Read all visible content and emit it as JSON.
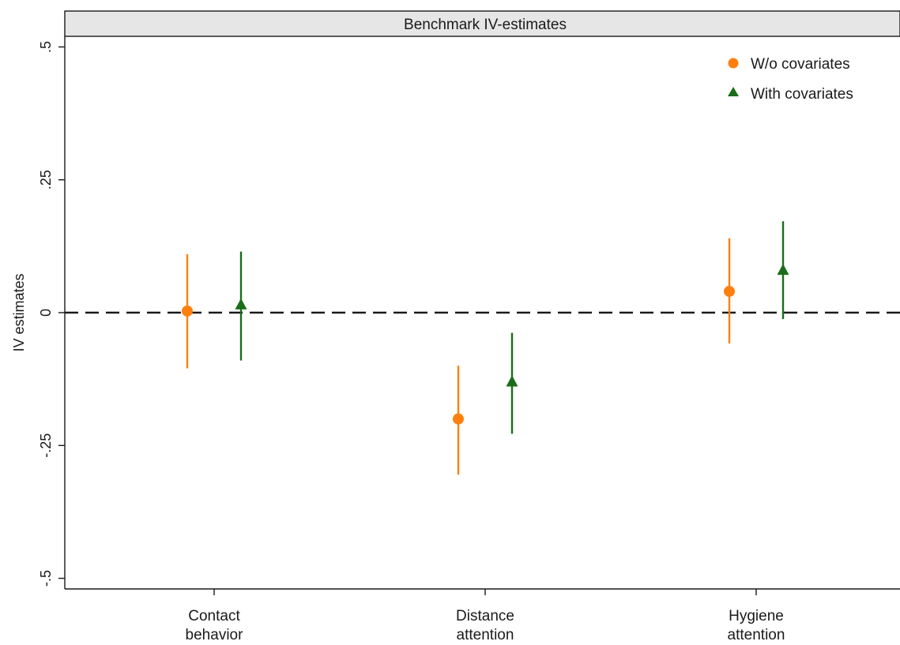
{
  "chart_data": {
    "type": "scatter",
    "panel_title": "Benchmark IV-estimates",
    "ylabel": "IV estimates",
    "xlabel": "",
    "ylim": [
      -0.52,
      0.52
    ],
    "yticks": [
      {
        "value": 0.5,
        "label": ".5"
      },
      {
        "value": 0.25,
        "label": ".25"
      },
      {
        "value": 0,
        "label": "0"
      },
      {
        "value": -0.25,
        "label": "-.25"
      },
      {
        "value": -0.5,
        "label": "-.5"
      }
    ],
    "categories": [
      {
        "lines": [
          "Contact",
          "behavior"
        ]
      },
      {
        "lines": [
          "Distance",
          "attention"
        ]
      },
      {
        "lines": [
          "Hygiene",
          "attention"
        ]
      }
    ],
    "reference_line": {
      "y": 0,
      "style": "dashed"
    },
    "grid": false,
    "legend": {
      "placement": "top-right"
    },
    "series": [
      {
        "name": "W/o covariates",
        "marker": "circle",
        "color": "#ff7f0e",
        "points": [
          {
            "category": "Contact behavior",
            "estimate": 0.003,
            "ci_low": -0.105,
            "ci_high": 0.11
          },
          {
            "category": "Distance attention",
            "estimate": -0.2,
            "ci_low": -0.305,
            "ci_high": -0.1
          },
          {
            "category": "Hygiene attention",
            "estimate": 0.04,
            "ci_low": -0.058,
            "ci_high": 0.14
          }
        ]
      },
      {
        "name": "With covariates",
        "marker": "triangle",
        "color": "#1a6e1a",
        "points": [
          {
            "category": "Contact behavior",
            "estimate": 0.015,
            "ci_low": -0.09,
            "ci_high": 0.115
          },
          {
            "category": "Distance attention",
            "estimate": -0.13,
            "ci_low": -0.228,
            "ci_high": -0.038
          },
          {
            "category": "Hygiene attention",
            "estimate": 0.08,
            "ci_low": -0.012,
            "ci_high": 0.172
          }
        ]
      }
    ]
  }
}
